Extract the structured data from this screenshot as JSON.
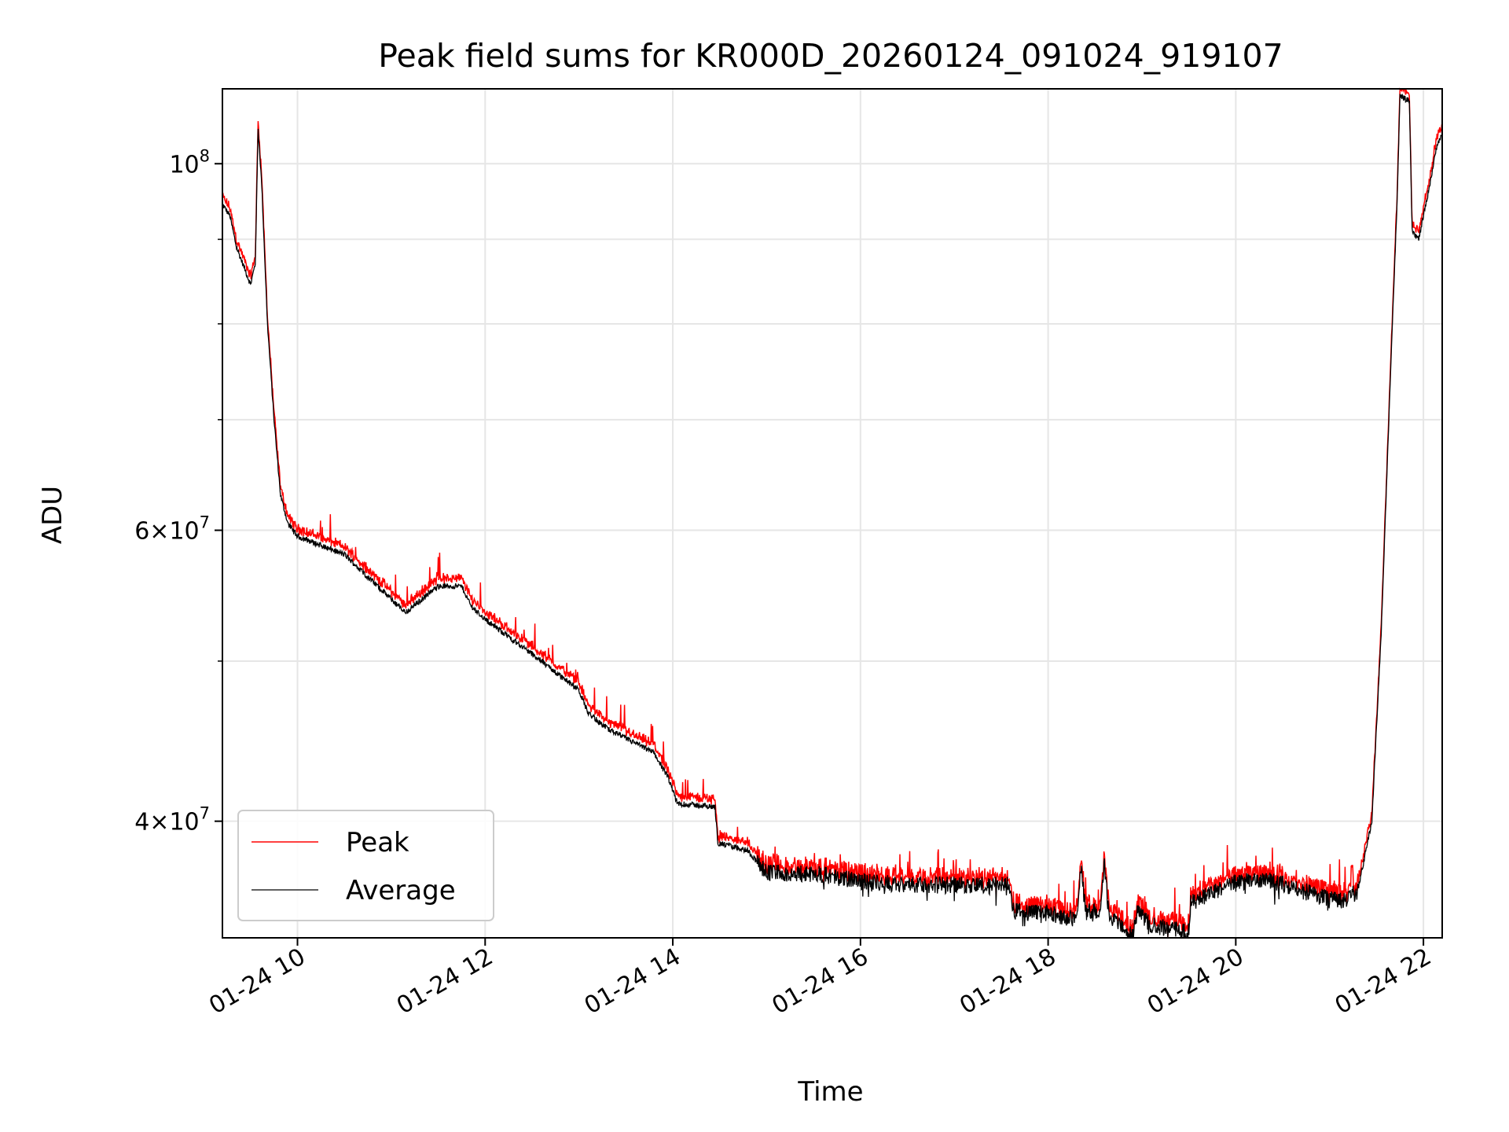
{
  "chart_data": {
    "type": "line",
    "title": "Peak field sums for KR000D_20260124_091024_919107",
    "xlabel": "Time",
    "ylabel": "ADU",
    "yscale": "log",
    "xlim_hours": [
      9.2,
      22.2
    ],
    "ylim": [
      34000000,
      111000000
    ],
    "grid": true,
    "legend_position": "lower-left",
    "x_ticks": [
      {
        "hour": 10,
        "label": "01-24 10"
      },
      {
        "hour": 12,
        "label": "01-24 12"
      },
      {
        "hour": 14,
        "label": "01-24 14"
      },
      {
        "hour": 16,
        "label": "01-24 16"
      },
      {
        "hour": 18,
        "label": "01-24 18"
      },
      {
        "hour": 20,
        "label": "01-24 20"
      },
      {
        "hour": 22,
        "label": "01-24 22"
      }
    ],
    "y_major_ticks": [
      {
        "value": 100000000,
        "base": "10",
        "exp": "8"
      },
      {
        "value": 60000000,
        "mant": "6",
        "base": "10",
        "exp": "7"
      },
      {
        "value": 40000000,
        "mant": "4",
        "base": "10",
        "exp": "7"
      }
    ],
    "y_minor_ticks": [
      90000000,
      80000000,
      70000000,
      50000000
    ],
    "series": [
      {
        "name": "Peak",
        "color": "#ff0000"
      },
      {
        "name": "Average",
        "color": "#000000"
      }
    ],
    "average_profile": [
      [
        9.2,
        94500000
      ],
      [
        9.28,
        93000000
      ],
      [
        9.35,
        89000000
      ],
      [
        9.45,
        86000000
      ],
      [
        9.5,
        84500000
      ],
      [
        9.55,
        87000000
      ],
      [
        9.58,
        105000000
      ],
      [
        9.62,
        97000000
      ],
      [
        9.68,
        80000000
      ],
      [
        9.75,
        70000000
      ],
      [
        9.82,
        63000000
      ],
      [
        9.9,
        60500000
      ],
      [
        10.0,
        59500000
      ],
      [
        10.5,
        58000000
      ],
      [
        11.0,
        54500000
      ],
      [
        11.15,
        53500000
      ],
      [
        11.5,
        55500000
      ],
      [
        11.75,
        55500000
      ],
      [
        11.85,
        54000000
      ],
      [
        12.0,
        53000000
      ],
      [
        12.5,
        50500000
      ],
      [
        13.0,
        48000000
      ],
      [
        13.1,
        46500000
      ],
      [
        13.3,
        45500000
      ],
      [
        13.8,
        44000000
      ],
      [
        13.95,
        42500000
      ],
      [
        14.05,
        41000000
      ],
      [
        14.45,
        40800000
      ],
      [
        14.48,
        38800000
      ],
      [
        14.8,
        38400000
      ],
      [
        15.0,
        37200000
      ],
      [
        15.5,
        37200000
      ],
      [
        16.0,
        36800000
      ],
      [
        16.5,
        36600000
      ],
      [
        17.0,
        36600000
      ],
      [
        17.6,
        36600000
      ],
      [
        17.62,
        35300000
      ],
      [
        18.0,
        35200000
      ],
      [
        18.3,
        34900000
      ],
      [
        18.35,
        37500000
      ],
      [
        18.4,
        35300000
      ],
      [
        18.55,
        35200000
      ],
      [
        18.6,
        37600000
      ],
      [
        18.65,
        35000000
      ],
      [
        18.75,
        34800000
      ],
      [
        18.9,
        34100000
      ],
      [
        18.95,
        35300000
      ],
      [
        19.1,
        34600000
      ],
      [
        19.5,
        34300000
      ],
      [
        19.52,
        35800000
      ],
      [
        19.8,
        36300000
      ],
      [
        20.0,
        36700000
      ],
      [
        20.3,
        36900000
      ],
      [
        20.6,
        36500000
      ],
      [
        20.9,
        36000000
      ],
      [
        21.15,
        35800000
      ],
      [
        21.3,
        36300000
      ],
      [
        21.45,
        40000000
      ],
      [
        21.55,
        52000000
      ],
      [
        21.65,
        75000000
      ],
      [
        21.72,
        95000000
      ],
      [
        21.75,
        110000000
      ],
      [
        21.85,
        109000000
      ],
      [
        21.88,
        91000000
      ],
      [
        21.95,
        90000000
      ],
      [
        22.05,
        96000000
      ],
      [
        22.15,
        103000000
      ],
      [
        22.2,
        104000000
      ]
    ]
  },
  "legend": {
    "peak_label": "Peak",
    "average_label": "Average"
  }
}
